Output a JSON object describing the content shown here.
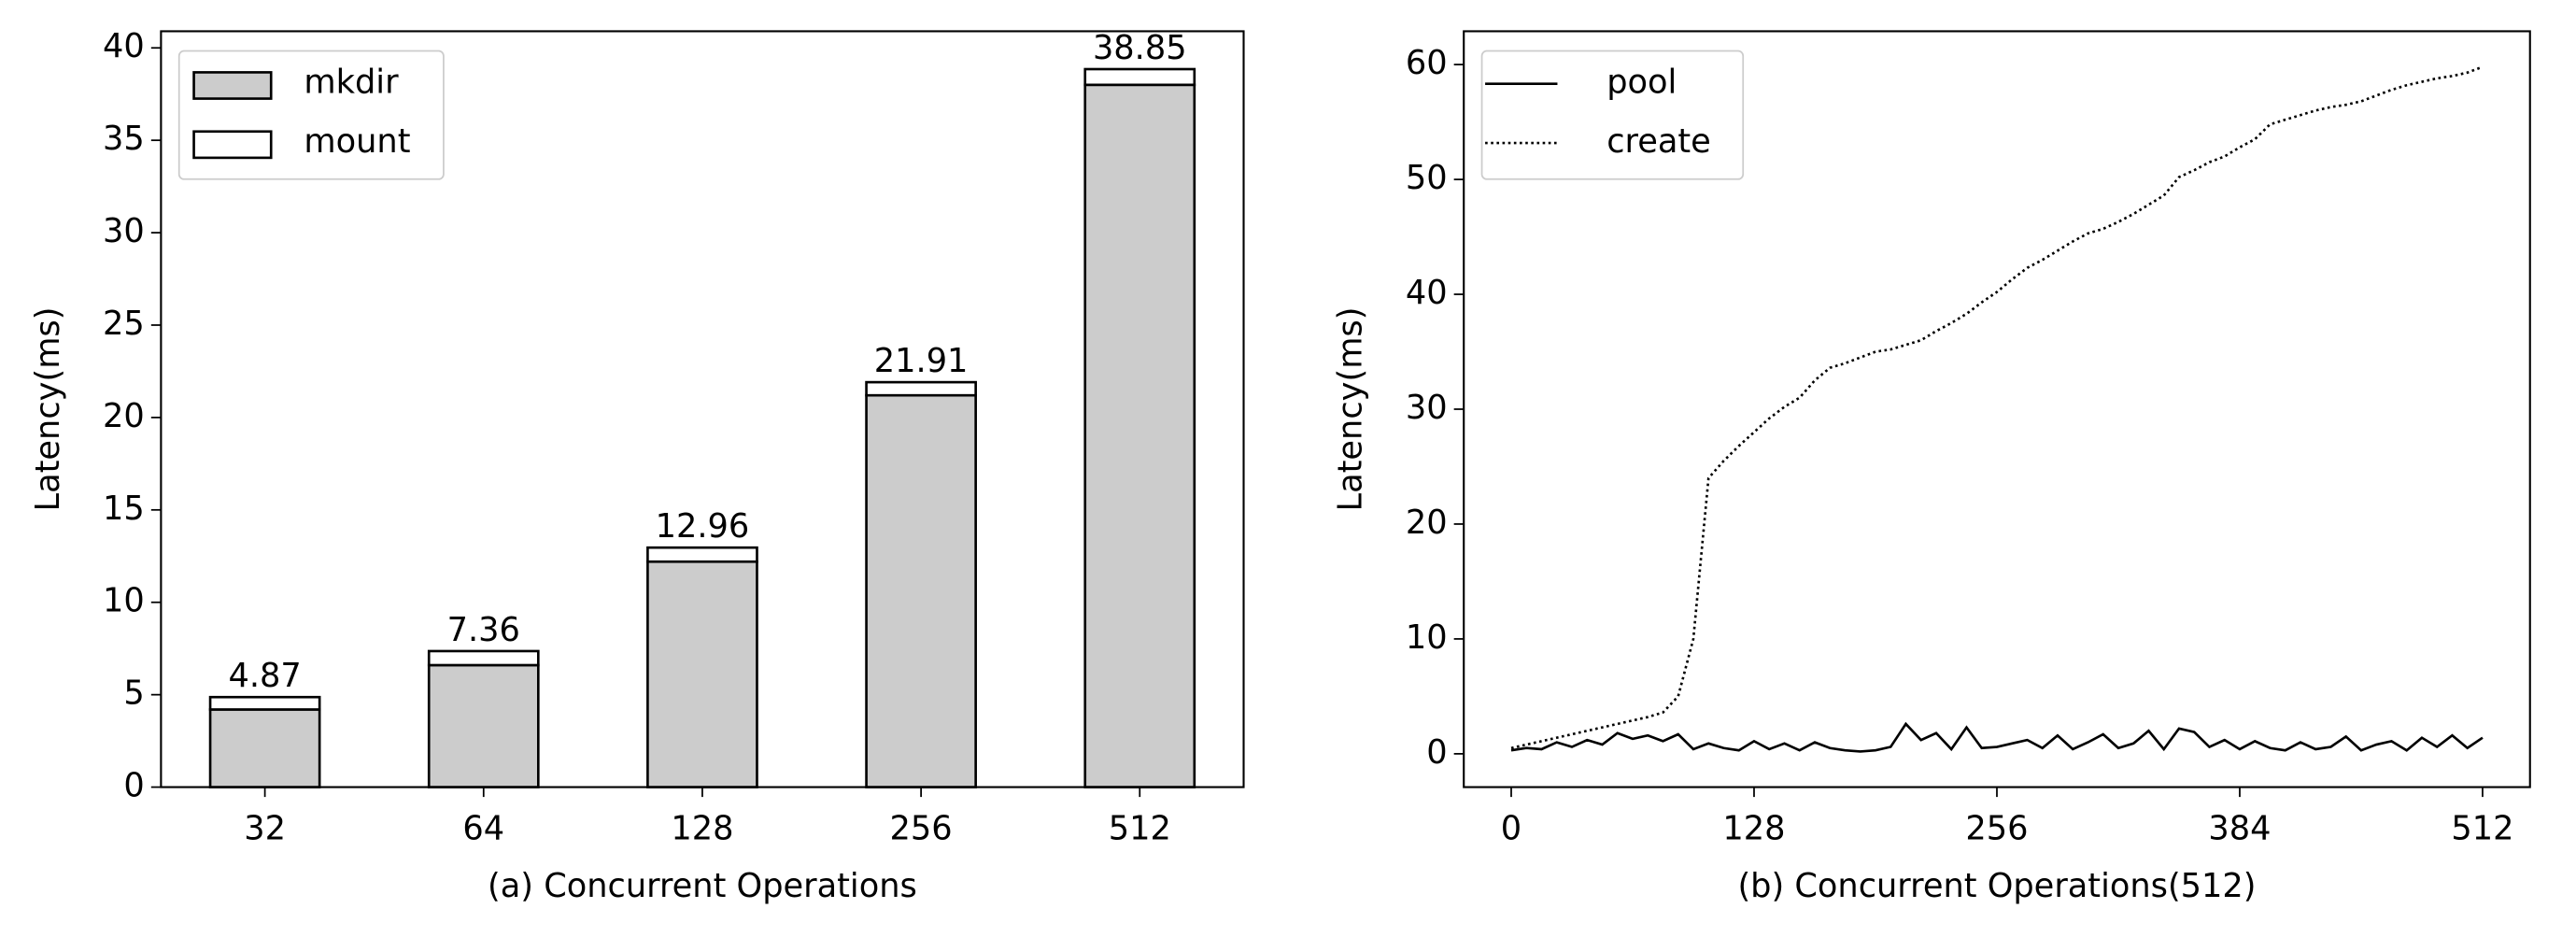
{
  "chart_data": [
    {
      "type": "stacked_bar",
      "xlabel": "(a) Concurrent Operations",
      "ylabel": "Latency(ms)",
      "categories": [
        "32",
        "64",
        "128",
        "256",
        "512"
      ],
      "series": [
        {
          "name": "mkdir",
          "color": "#cccccc",
          "values": [
            4.2,
            6.6,
            12.2,
            21.2,
            38.0
          ]
        },
        {
          "name": "mount",
          "color": "#ffffff",
          "values": [
            0.67,
            0.76,
            0.76,
            0.71,
            0.85
          ]
        }
      ],
      "totals": [
        4.87,
        7.36,
        12.96,
        21.91,
        38.85
      ],
      "ylim": [
        0,
        40.9
      ],
      "yticks": [
        0,
        5,
        10,
        15,
        20,
        25,
        30,
        35,
        40
      ],
      "legend": "upper left"
    },
    {
      "type": "line",
      "xlabel": "(b) Concurrent Operations(512)",
      "ylabel": "Latency(ms)",
      "x": [
        0,
        8,
        16,
        24,
        32,
        40,
        48,
        56,
        64,
        72,
        80,
        88,
        96,
        104,
        112,
        120,
        128,
        136,
        144,
        152,
        160,
        168,
        176,
        184,
        192,
        200,
        208,
        216,
        224,
        232,
        240,
        248,
        256,
        264,
        272,
        280,
        288,
        296,
        304,
        312,
        320,
        328,
        336,
        344,
        352,
        360,
        368,
        376,
        384,
        392,
        400,
        408,
        416,
        424,
        432,
        440,
        448,
        456,
        464,
        472,
        480,
        488,
        496,
        504,
        512
      ],
      "series": [
        {
          "name": "pool",
          "color": "#000000",
          "style": "solid",
          "values": [
            0.3,
            0.5,
            0.4,
            1.0,
            0.6,
            1.2,
            0.8,
            1.8,
            1.3,
            1.6,
            1.1,
            1.7,
            0.4,
            0.9,
            0.5,
            0.3,
            1.1,
            0.4,
            0.9,
            0.3,
            1.0,
            0.5,
            0.3,
            0.2,
            0.3,
            0.6,
            2.6,
            1.2,
            1.8,
            0.4,
            2.3,
            0.5,
            0.6,
            0.9,
            1.2,
            0.5,
            1.6,
            0.4,
            1.0,
            1.7,
            0.5,
            0.9,
            2.0,
            0.4,
            2.2,
            1.9,
            0.6,
            1.2,
            0.4,
            1.1,
            0.5,
            0.3,
            1.0,
            0.4,
            0.6,
            1.5,
            0.3,
            0.8,
            1.1,
            0.3,
            1.4,
            0.6,
            1.6,
            0.5,
            1.4
          ]
        },
        {
          "name": "create",
          "color": "#000000",
          "style": "dotted",
          "values": [
            0.5,
            0.8,
            1.1,
            1.4,
            1.7,
            2.0,
            2.3,
            2.6,
            2.9,
            3.2,
            3.6,
            5.0,
            10.0,
            24.0,
            25.5,
            26.8,
            28.0,
            29.2,
            30.2,
            31.0,
            32.5,
            33.6,
            34.0,
            34.5,
            35.0,
            35.2,
            35.6,
            36.0,
            36.8,
            37.5,
            38.3,
            39.3,
            40.2,
            41.3,
            42.3,
            43.0,
            43.8,
            44.6,
            45.3,
            45.7,
            46.3,
            47.0,
            47.8,
            48.6,
            50.2,
            50.8,
            51.5,
            52.0,
            52.8,
            53.5,
            54.8,
            55.2,
            55.6,
            56.0,
            56.3,
            56.5,
            56.8,
            57.3,
            57.8,
            58.2,
            58.5,
            58.8,
            59.0,
            59.3,
            59.8
          ]
        }
      ],
      "xlim": [
        -25,
        537
      ],
      "xticks": [
        0,
        128,
        256,
        384,
        512
      ],
      "ylim": [
        -2.9,
        62.9
      ],
      "yticks": [
        0,
        10,
        20,
        30,
        40,
        50,
        60
      ],
      "legend": "upper left"
    }
  ]
}
